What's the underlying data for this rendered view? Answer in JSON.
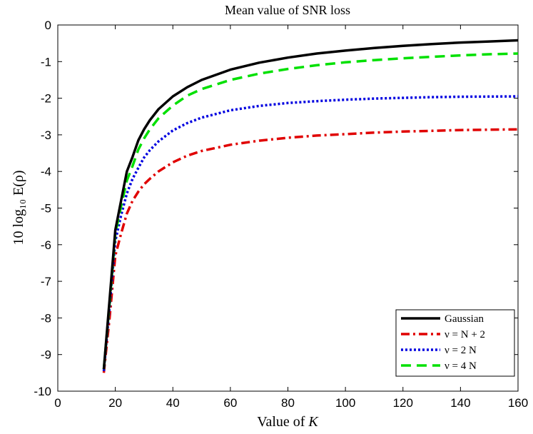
{
  "chart_data": {
    "type": "line",
    "title": "Mean value of SNR loss",
    "xlabel_prefix": "Value of ",
    "xlabel_var": "K",
    "ylabel": "10 log₁₀ E(ρ)",
    "xlim": [
      0,
      160
    ],
    "ylim": [
      -10,
      0
    ],
    "xticks": [
      0,
      20,
      40,
      60,
      80,
      100,
      120,
      140,
      160
    ],
    "yticks": [
      0,
      -1,
      -2,
      -3,
      -4,
      -5,
      -6,
      -7,
      -8,
      -9,
      -10
    ],
    "grid": false,
    "legend_placement": "bottom-right",
    "x": [
      16,
      18,
      20,
      22,
      24,
      26,
      28,
      30,
      32,
      35,
      40,
      45,
      50,
      60,
      70,
      80,
      90,
      100,
      110,
      120,
      130,
      140,
      150,
      160
    ],
    "series": [
      {
        "name": "Gaussian",
        "color": "#000000",
        "style": "solid",
        "values": [
          -9.4,
          -7.5,
          -5.6,
          -4.8,
          -4.0,
          -3.6,
          -3.15,
          -2.85,
          -2.6,
          -2.3,
          -1.95,
          -1.7,
          -1.5,
          -1.22,
          -1.03,
          -0.89,
          -0.78,
          -0.7,
          -0.63,
          -0.57,
          -0.52,
          -0.48,
          -0.45,
          -0.42
        ]
      },
      {
        "name": "ν = N + 2",
        "color": "#e00000",
        "style": "dashdot",
        "values": [
          -9.5,
          -8.0,
          -6.3,
          -5.7,
          -5.15,
          -4.8,
          -4.55,
          -4.35,
          -4.2,
          -4.0,
          -3.75,
          -3.57,
          -3.44,
          -3.27,
          -3.16,
          -3.08,
          -3.02,
          -2.98,
          -2.94,
          -2.91,
          -2.89,
          -2.87,
          -2.86,
          -2.85
        ]
      },
      {
        "name": "ν = 2 N",
        "color": "#0000e0",
        "style": "dotted",
        "values": [
          -9.45,
          -7.7,
          -5.9,
          -5.2,
          -4.6,
          -4.2,
          -3.9,
          -3.62,
          -3.42,
          -3.18,
          -2.88,
          -2.68,
          -2.53,
          -2.33,
          -2.21,
          -2.13,
          -2.08,
          -2.04,
          -2.01,
          -1.99,
          -1.97,
          -1.96,
          -1.955,
          -1.95
        ]
      },
      {
        "name": "ν = 4 N",
        "color": "#00e000",
        "style": "dashed",
        "values": [
          -9.4,
          -7.6,
          -5.7,
          -4.95,
          -4.25,
          -3.85,
          -3.4,
          -3.1,
          -2.85,
          -2.55,
          -2.2,
          -1.93,
          -1.75,
          -1.5,
          -1.33,
          -1.2,
          -1.1,
          -1.02,
          -0.96,
          -0.91,
          -0.87,
          -0.83,
          -0.8,
          -0.78
        ]
      }
    ]
  }
}
